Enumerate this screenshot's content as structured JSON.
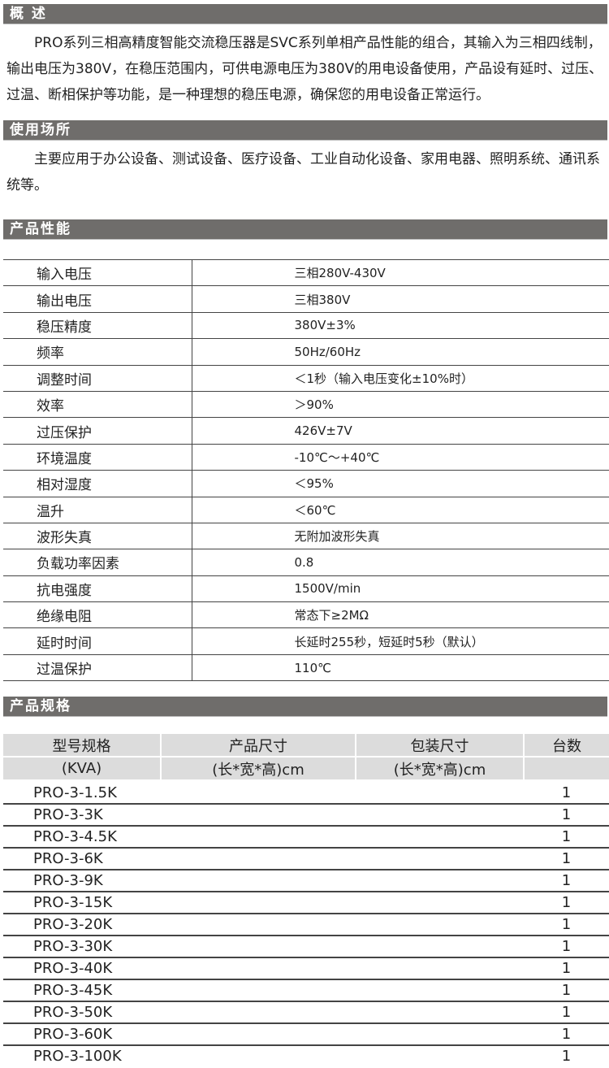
{
  "overview": {
    "title": "概 述",
    "text": "PRO系列三相高精度智能交流稳压器是SVC系列单相产品性能的组合，其输入为三相四线制，输出电压为380V，在稳压范围内，可供电源电压为380V的用电设备使用，产品设有延时、过压、过温、断相保护等功能，是一种理想的稳压电源，确保您的用电设备正常运行。"
  },
  "usage": {
    "title": "使用场所",
    "text": "主要应用于办公设备、测试设备、医疗设备、工业自动化设备、家用电器、照明系统、通讯系统等。"
  },
  "performance": {
    "title": "产品性能",
    "rows": [
      [
        "输入电压",
        "三相280V-430V"
      ],
      [
        "输出电压",
        "三相380V"
      ],
      [
        "稳压精度",
        "380V±3%"
      ],
      [
        "频率",
        "50Hz/60Hz"
      ],
      [
        "调整时间",
        "＜1秒（输入电压变化±10%时）"
      ],
      [
        "效率",
        "＞90%"
      ],
      [
        "过压保护",
        "426V±7V"
      ],
      [
        "环境温度",
        "-10℃～+40℃"
      ],
      [
        "相对湿度",
        "＜95%"
      ],
      [
        "温升",
        "＜60℃"
      ],
      [
        "波形失真",
        "无附加波形失真"
      ],
      [
        "负载功率因素",
        "0.8"
      ],
      [
        "抗电强度",
        "1500V/min"
      ],
      [
        "绝缘电阻",
        "常态下≥2MΩ"
      ],
      [
        "延时时间",
        "长延时255秒，短延时5秒（默认）"
      ],
      [
        "过温保护",
        "110℃"
      ]
    ]
  },
  "specs": {
    "title": "产品规格",
    "headers": [
      "型号规格",
      "产品尺寸",
      "包装尺寸",
      "台数"
    ],
    "subheaders": [
      "(KVA)",
      "(长*宽*高)cm",
      "(长*宽*高)cm",
      ""
    ],
    "rows": [
      [
        "PRO-3-1.5K",
        "",
        "",
        "1"
      ],
      [
        "PRO-3-3K",
        "",
        "",
        "1"
      ],
      [
        "PRO-3-4.5K",
        "",
        "",
        "1"
      ],
      [
        "PRO-3-6K",
        "",
        "",
        "1"
      ],
      [
        "PRO-3-9K",
        "",
        "",
        "1"
      ],
      [
        "PRO-3-15K",
        "",
        "",
        "1"
      ],
      [
        "PRO-3-20K",
        "",
        "",
        "1"
      ],
      [
        "PRO-3-30K",
        "",
        "",
        "1"
      ],
      [
        "PRO-3-40K",
        "",
        "",
        "1"
      ],
      [
        "PRO-3-45K",
        "",
        "",
        "1"
      ],
      [
        "PRO-3-50K",
        "",
        "",
        "1"
      ],
      [
        "PRO-3-60K",
        "",
        "",
        "1"
      ],
      [
        "PRO-3-100K",
        "",
        "",
        "1"
      ]
    ]
  },
  "colors": {
    "section_bar": "#6f6d6b",
    "table_header": "#dcdcdc"
  }
}
